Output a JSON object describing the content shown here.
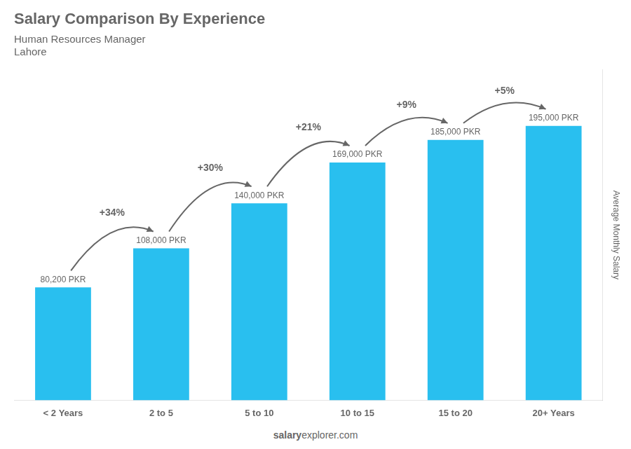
{
  "chart_data": {
    "type": "bar",
    "title": "Salary Comparison By Experience",
    "subtitle": "Human Resources Manager",
    "city": "Lahore",
    "categories": [
      "< 2 Years",
      "2 to 5",
      "5 to 10",
      "10 to 15",
      "15 to 20",
      "20+ Years"
    ],
    "values": [
      80200,
      108000,
      140000,
      169000,
      185000,
      195000
    ],
    "value_labels": [
      "80,200 PKR",
      "108,000 PKR",
      "140,000 PKR",
      "169,000 PKR",
      "185,000 PKR",
      "195,000 PKR"
    ],
    "data_labels": true,
    "color": "#29BFEF",
    "ylabel": "Average Monthly Salary",
    "ylim": [
      0,
      235000
    ],
    "grid": false,
    "tick_labels": "x",
    "annotations": [
      {
        "text": "+34%",
        "from": "< 2 Years",
        "to": "2 to 5"
      },
      {
        "text": "+30%",
        "from": "2 to 5",
        "to": "5 to 10"
      },
      {
        "text": "+21%",
        "from": "5 to 10",
        "to": "10 to 15"
      },
      {
        "text": "+9%",
        "from": "10 to 15",
        "to": "15 to 20"
      },
      {
        "text": "+5%",
        "from": "15 to 20",
        "to": "20+ Years"
      }
    ],
    "footer": [
      "salary",
      "explorer.com"
    ]
  }
}
